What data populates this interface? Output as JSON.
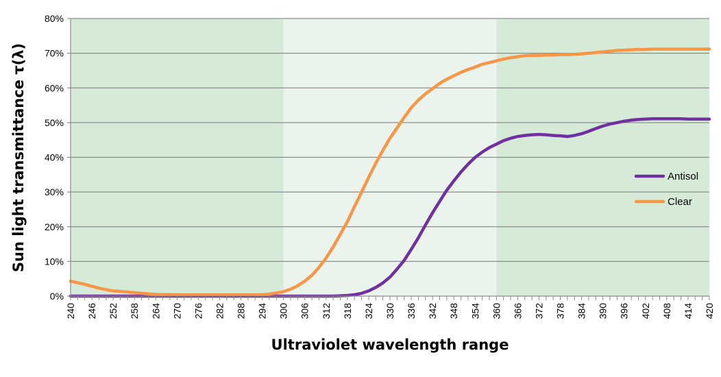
{
  "chart_data": {
    "type": "line",
    "xlabel": "Ultraviolet wavelength range",
    "ylabel": "Sun light transmittance τ(λ)",
    "xlim": [
      240,
      420
    ],
    "ylim": [
      0,
      80
    ],
    "x_ticks": [
      240,
      246,
      252,
      258,
      264,
      270,
      276,
      282,
      288,
      294,
      300,
      306,
      312,
      318,
      324,
      330,
      336,
      342,
      348,
      354,
      360,
      366,
      372,
      378,
      384,
      390,
      396,
      402,
      408,
      414,
      420
    ],
    "y_ticks": [
      0,
      10,
      20,
      30,
      40,
      50,
      60,
      70,
      80
    ],
    "y_tick_format": "%",
    "grid": {
      "horizontal": true,
      "vertical": false
    },
    "legend": "right",
    "bands": [
      {
        "from": 240,
        "to": 300,
        "color": "#d6ead8"
      },
      {
        "from": 300,
        "to": 360,
        "color": "#ebf4ec"
      },
      {
        "from": 360,
        "to": 420,
        "color": "#d6ead8"
      }
    ],
    "x": [
      240,
      244,
      248,
      252,
      256,
      260,
      264,
      270,
      276,
      282,
      288,
      294,
      296,
      298,
      300,
      302,
      304,
      306,
      308,
      310,
      312,
      314,
      316,
      318,
      320,
      322,
      324,
      326,
      328,
      330,
      332,
      334,
      336,
      338,
      340,
      342,
      344,
      346,
      348,
      350,
      352,
      354,
      356,
      358,
      360,
      362,
      364,
      366,
      368,
      370,
      372,
      374,
      376,
      378,
      380,
      382,
      384,
      386,
      388,
      390,
      392,
      394,
      396,
      398,
      400,
      402,
      404,
      406,
      408,
      410,
      412,
      414,
      416,
      418,
      420
    ],
    "series": [
      {
        "name": "Antisol",
        "color": "#7030a0",
        "values": [
          0,
          0,
          0,
          0,
          0,
          0,
          0,
          0,
          0,
          0,
          0,
          0,
          0,
          0,
          0,
          0,
          0,
          0,
          0,
          0,
          0,
          0,
          0.1,
          0.2,
          0.4,
          0.8,
          1.5,
          2.5,
          3.8,
          5.5,
          7.8,
          10.3,
          13.5,
          16.8,
          20.5,
          24,
          27.3,
          30.5,
          33.2,
          35.8,
          38,
          40,
          41.5,
          42.8,
          43.8,
          44.8,
          45.5,
          46,
          46.3,
          46.5,
          46.6,
          46.5,
          46.3,
          46.2,
          46,
          46.3,
          46.8,
          47.5,
          48.3,
          49,
          49.6,
          50,
          50.4,
          50.7,
          50.9,
          51,
          51.1,
          51.1,
          51.1,
          51.1,
          51.1,
          51,
          51,
          51,
          51
        ]
      },
      {
        "name": "Clear",
        "color": "#f79646",
        "values": [
          4.3,
          3.4,
          2.3,
          1.5,
          1.2,
          0.8,
          0.5,
          0.4,
          0.4,
          0.4,
          0.4,
          0.4,
          0.6,
          0.9,
          1.3,
          2,
          3,
          4.3,
          6,
          8.3,
          11,
          14.2,
          17.8,
          21.5,
          25.8,
          30,
          34.2,
          38.3,
          42,
          45.5,
          48.5,
          51.5,
          54.3,
          56.5,
          58.3,
          59.8,
          61.3,
          62.5,
          63.5,
          64.5,
          65.3,
          66,
          66.8,
          67.3,
          67.8,
          68.3,
          68.7,
          69,
          69.3,
          69.4,
          69.4,
          69.5,
          69.5,
          69.6,
          69.6,
          69.7,
          69.8,
          70,
          70.2,
          70.4,
          70.6,
          70.8,
          70.9,
          71,
          71.1,
          71.1,
          71.2,
          71.2,
          71.2,
          71.2,
          71.2,
          71.2,
          71.2,
          71.2,
          71.2
        ]
      }
    ]
  }
}
